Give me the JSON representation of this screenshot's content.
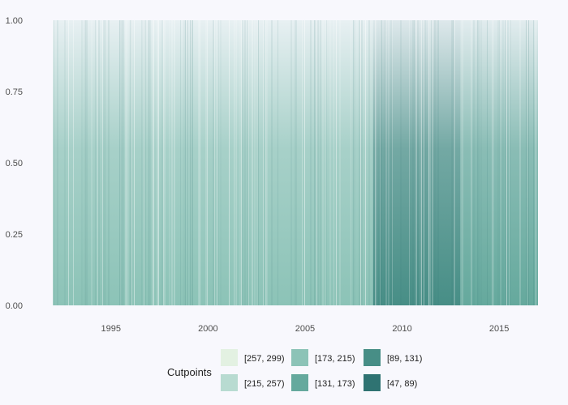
{
  "chart_data": {
    "type": "heatmap",
    "title": "",
    "xlabel": "",
    "ylabel": "",
    "xlim": [
      1992,
      2017
    ],
    "ylim": [
      0,
      1
    ],
    "grid": false,
    "x_ticks": [
      "1995",
      "2000",
      "2005",
      "2010",
      "2015"
    ],
    "x_tick_values": [
      1995,
      2000,
      2005,
      2010,
      2015
    ],
    "y_ticks": [
      "0.00",
      "0.25",
      "0.50",
      "0.75",
      "1.00"
    ],
    "y_tick_values": [
      0,
      0.25,
      0.5,
      0.75,
      1
    ],
    "legend": {
      "title": "Cutpoints",
      "placement": "bottom",
      "entries": [
        {
          "label": "[257, 299)",
          "color": "#e3f1e2"
        },
        {
          "label": "[215, 257)",
          "color": "#b8dbd1"
        },
        {
          "label": "[173, 215)",
          "color": "#8cc3b7"
        },
        {
          "label": "[131, 173)",
          "color": "#65a99d"
        },
        {
          "label": "[89, 131)",
          "color": "#478e86"
        },
        {
          "label": "[47, 89)",
          "color": "#2f7372"
        }
      ]
    },
    "segments": [
      {
        "start": 1992.0,
        "end": 1995.5,
        "value": 175
      },
      {
        "start": 1995.5,
        "end": 1999.0,
        "value": 185
      },
      {
        "start": 1999.0,
        "end": 2003.0,
        "value": 200
      },
      {
        "start": 2003.0,
        "end": 2005.0,
        "value": 175
      },
      {
        "start": 2005.0,
        "end": 2008.5,
        "value": 195
      },
      {
        "start": 2008.5,
        "end": 2013.0,
        "value": 130
      },
      {
        "start": 2013.0,
        "end": 2017.0,
        "value": 150
      }
    ]
  }
}
